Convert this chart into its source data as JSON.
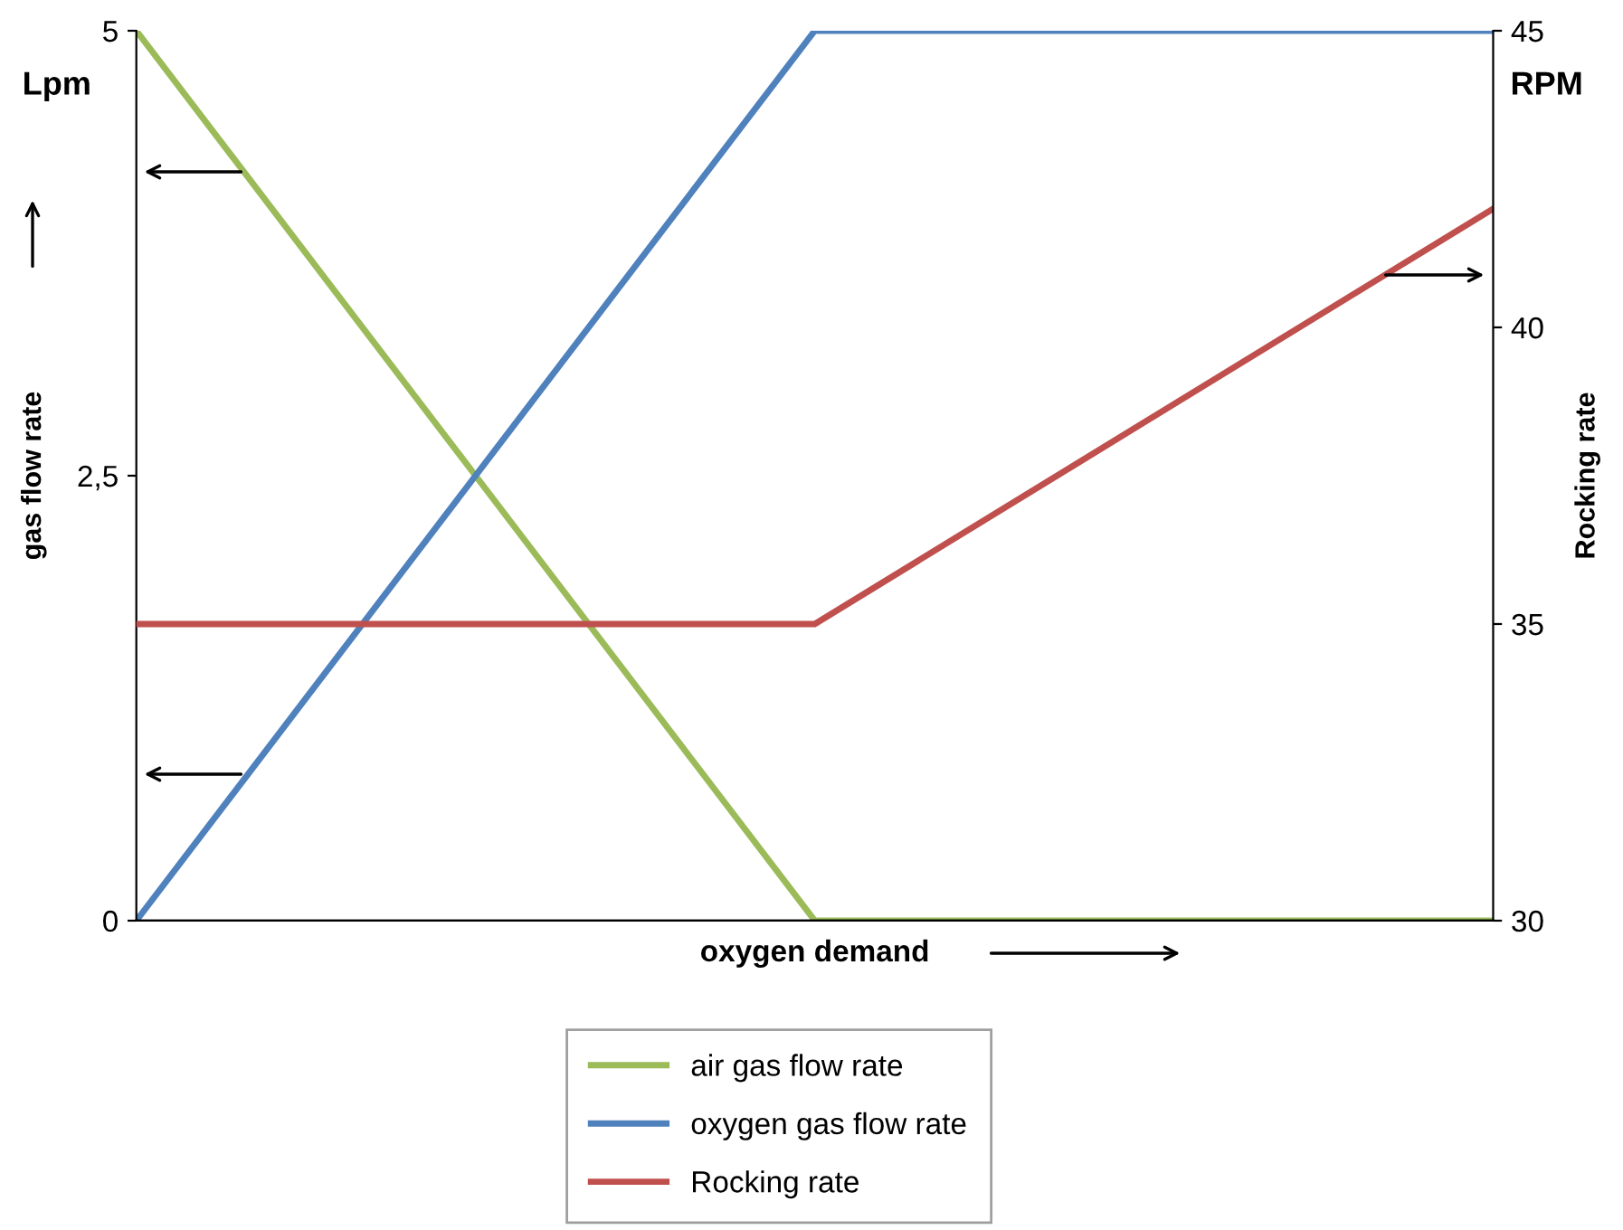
{
  "chart_data": {
    "type": "line",
    "xlabel": "oxygen demand",
    "ylabel": "gas flow rate",
    "y2label": "Rocking rate",
    "categories": [
      null,
      null,
      null
    ],
    "series": [
      {
        "name": "air gas flow rate",
        "color": "#9bbb59",
        "values": [
          5,
          0,
          0
        ]
      },
      {
        "name": "oxygen gas flow rate",
        "color": "#4f81bd",
        "values": [
          0,
          5,
          5
        ]
      },
      {
        "name": "Rocking rate",
        "color": "#c0504d",
        "values": [
          35,
          35,
          42
        ],
        "axis": "y2"
      }
    ],
    "ylim": [
      0,
      5
    ],
    "yticks": [
      0,
      {
        "value": 2.5,
        "label": "2,5"
      },
      5
    ],
    "y2lim": [
      30,
      45
    ],
    "y2ticks": [
      30,
      35,
      40,
      45
    ],
    "annotations": [
      "Lpm",
      "RPM"
    ],
    "grid": false,
    "legend": "bottom",
    "marker": "none",
    "line_style": "solid"
  }
}
